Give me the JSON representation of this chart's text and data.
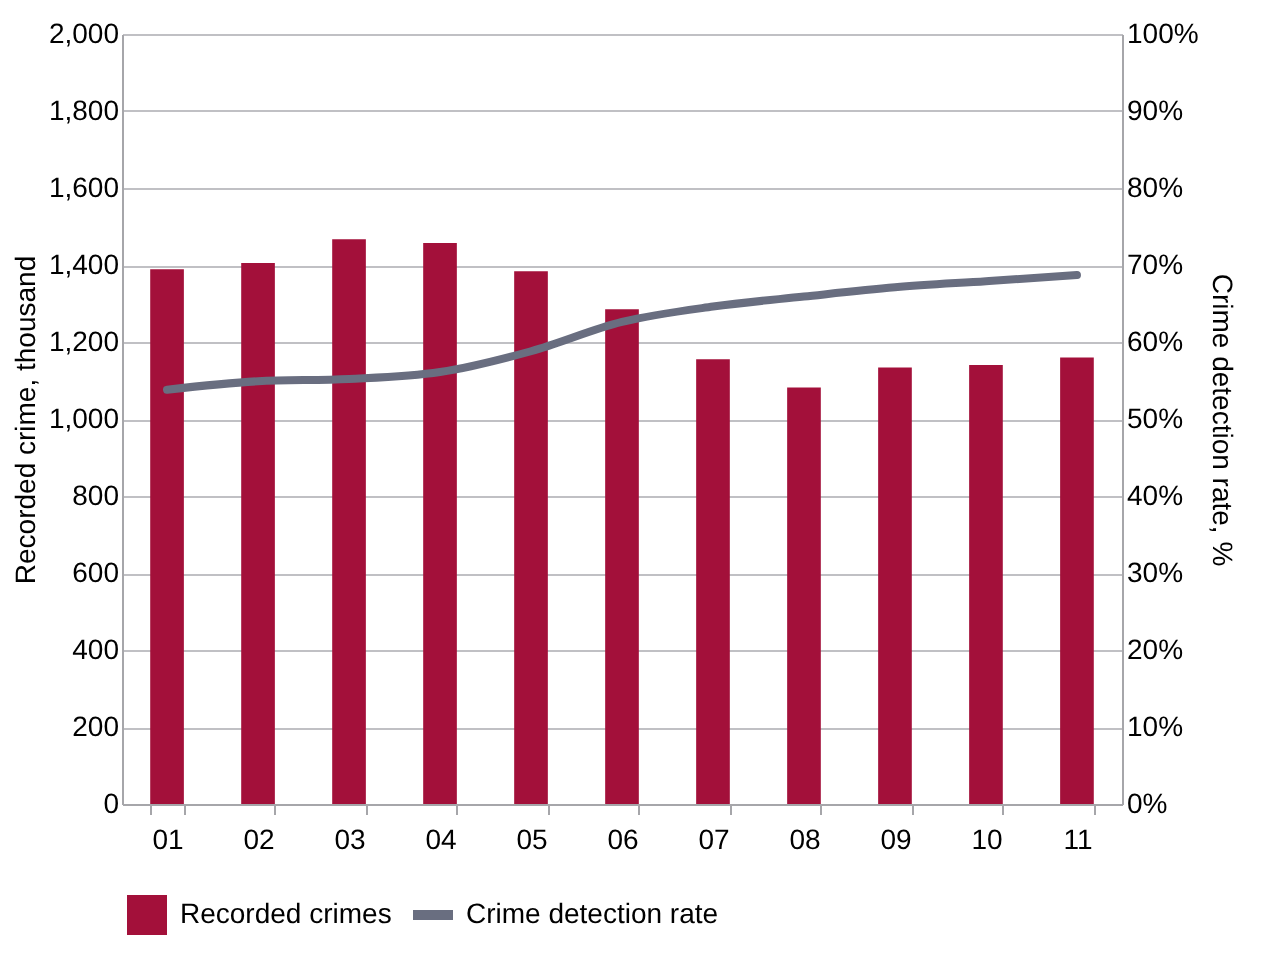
{
  "chart_data": {
    "type": "bar",
    "ylabel": "Recorded crime, thousand",
    "y2label": "Crime detection rate, %",
    "categories": [
      "01",
      "02",
      "03",
      "04",
      "05",
      "06",
      "07",
      "08",
      "09",
      "10",
      "11"
    ],
    "series": [
      {
        "name": "Recorded crimes",
        "color": "#a3103a",
        "values": [
          1389,
          1405,
          1467,
          1457,
          1384,
          1285,
          1155,
          1082,
          1134,
          1140,
          1160
        ]
      },
      {
        "name": "Crime detection rate",
        "type": "line",
        "axis": "y2",
        "color": "#696e80",
        "line_style": "solid",
        "values": [
          53.8,
          54.9,
          55.2,
          56.1,
          58.8,
          62.6,
          64.6,
          65.9,
          67.1,
          67.9,
          68.7
        ]
      }
    ],
    "ylim": [
      0,
      2000
    ],
    "yticks": [
      0,
      200,
      400,
      600,
      800,
      {
        "value": 1000,
        "label": "1,000"
      },
      {
        "value": 1200,
        "label": "1,200"
      },
      {
        "value": 1400,
        "label": "1,400"
      },
      {
        "value": 1600,
        "label": "1,600"
      },
      {
        "value": 1800,
        "label": "1,800"
      },
      {
        "value": 2000,
        "label": "2,000"
      }
    ],
    "y2lim": [
      0,
      100
    ],
    "y2ticks": [
      {
        "value": 0,
        "label": "0%"
      },
      {
        "value": 10,
        "label": "10%"
      },
      {
        "value": 20,
        "label": "20%"
      },
      {
        "value": 30,
        "label": "30%"
      },
      {
        "value": 40,
        "label": "40%"
      },
      {
        "value": 50,
        "label": "50%"
      },
      {
        "value": 60,
        "label": "60%"
      },
      {
        "value": 70,
        "label": "70%"
      },
      {
        "value": 80,
        "label": "80%"
      },
      {
        "value": 90,
        "label": "90%"
      },
      {
        "value": 100,
        "label": "100%"
      }
    ],
    "grid": "y",
    "legend": "bottom"
  }
}
